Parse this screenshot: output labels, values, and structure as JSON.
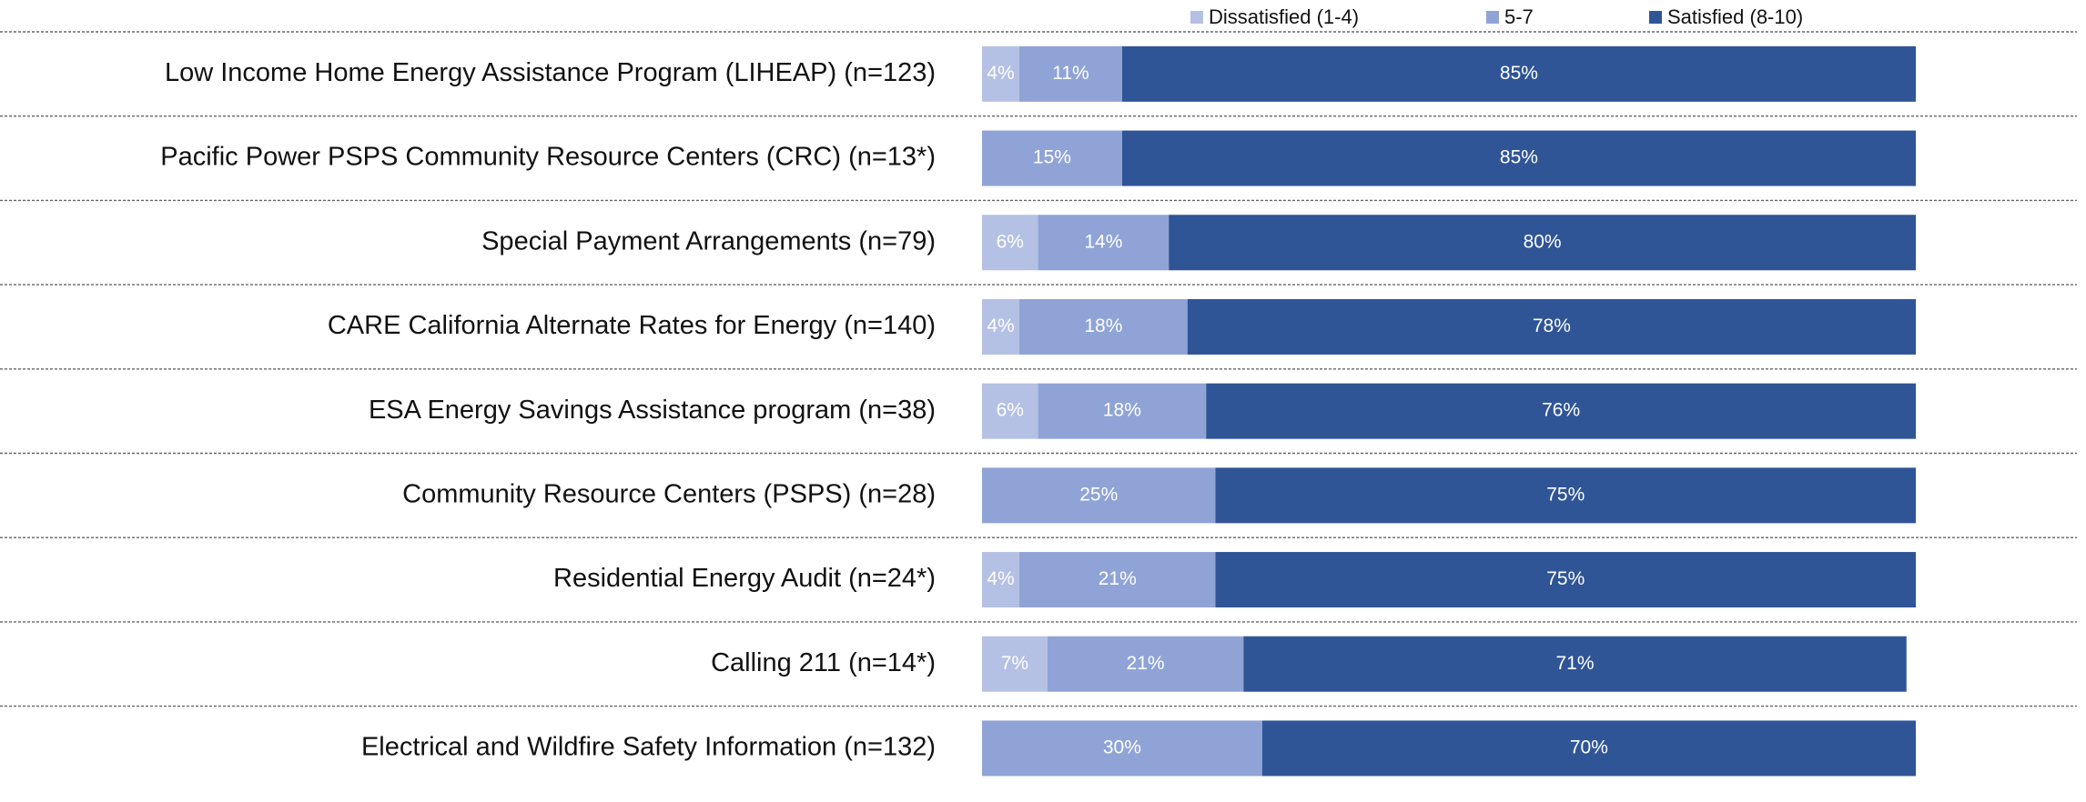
{
  "chart_data": {
    "type": "stacked-bar",
    "orientation": "horizontal",
    "categories": [
      "Low Income Home Energy Assistance Program (LIHEAP) (n=123)",
      "Pacific Power PSPS Community Resource Centers (CRC) (n=13*)",
      "Special Payment Arrangements (n=79)",
      "CARE California Alternate Rates for Energy (n=140)",
      "ESA Energy Savings Assistance program (n=38)",
      "Community Resource Centers (PSPS) (n=28)",
      "Residential Energy Audit (n=24*)",
      "Calling 211 (n=14*)",
      "Electrical and Wildfire Safety Information (n=132)"
    ],
    "series": [
      {
        "name": "Dissatisfied (1-4)",
        "color": "#b4c0e4",
        "values": [
          4,
          null,
          6,
          4,
          6,
          null,
          4,
          7,
          null
        ],
        "value_labels": [
          "4%",
          null,
          "6%",
          "4%",
          "6%",
          null,
          "4%",
          "7%",
          null
        ]
      },
      {
        "name": "5-7",
        "color": "#8fa3d6",
        "values": [
          11,
          15,
          14,
          18,
          18,
          25,
          21,
          21,
          30
        ],
        "value_labels": [
          "11%",
          "15%",
          "14%",
          "18%",
          "18%",
          "25%",
          "21%",
          "21%",
          "30%"
        ]
      },
      {
        "name": "Satisfied (8-10)",
        "color": "#2f5597",
        "values": [
          85,
          85,
          80,
          78,
          76,
          75,
          75,
          71,
          70
        ],
        "value_labels": [
          "85%",
          "85%",
          "80%",
          "78%",
          "76%",
          "75%",
          "75%",
          "71%",
          "70%"
        ]
      }
    ],
    "xlim": [
      0,
      100
    ],
    "legend": "top"
  }
}
